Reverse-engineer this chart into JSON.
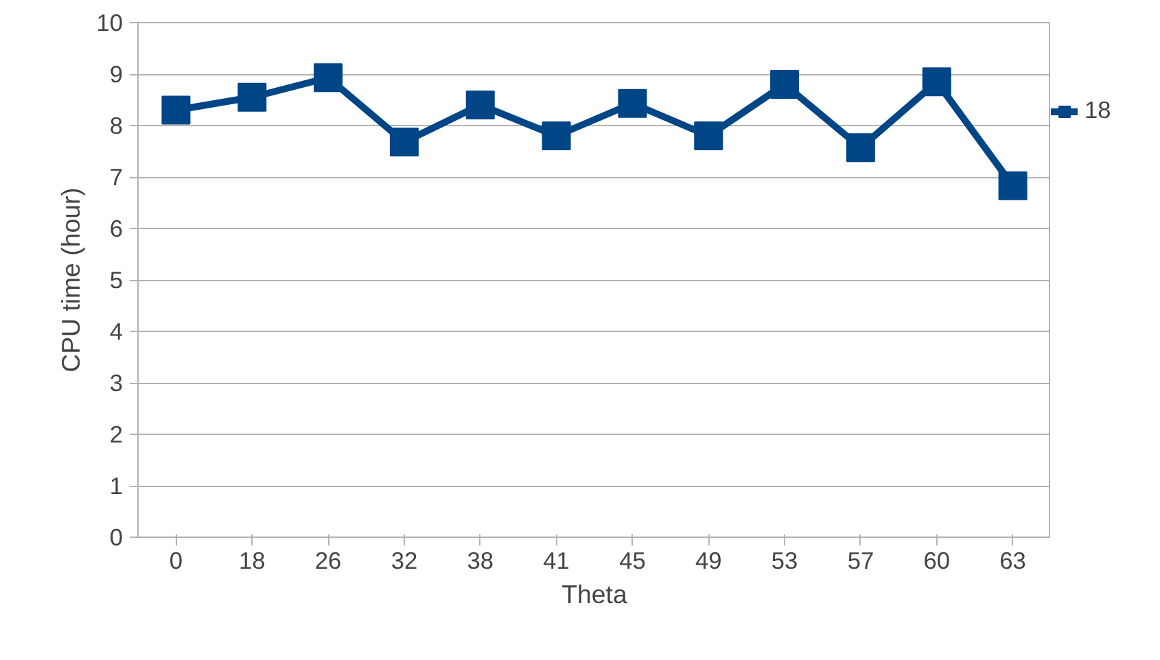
{
  "chart_data": {
    "type": "line",
    "xlabel": "Theta",
    "ylabel": "CPU time (hour)",
    "categories": [
      "0",
      "18",
      "26",
      "32",
      "38",
      "41",
      "45",
      "49",
      "53",
      "57",
      "60",
      "63"
    ],
    "series": [
      {
        "name": "18",
        "color": "#004586",
        "values": [
          8.3,
          8.55,
          8.93,
          7.68,
          8.4,
          7.8,
          8.43,
          7.8,
          8.8,
          7.57,
          8.85,
          6.83
        ]
      }
    ],
    "ylim": [
      0,
      10
    ],
    "yticks": [
      0,
      1,
      2,
      3,
      4,
      5,
      6,
      7,
      8,
      9,
      10
    ],
    "grid": "y",
    "legend": "right",
    "marker": "square",
    "line_style": "solid"
  }
}
